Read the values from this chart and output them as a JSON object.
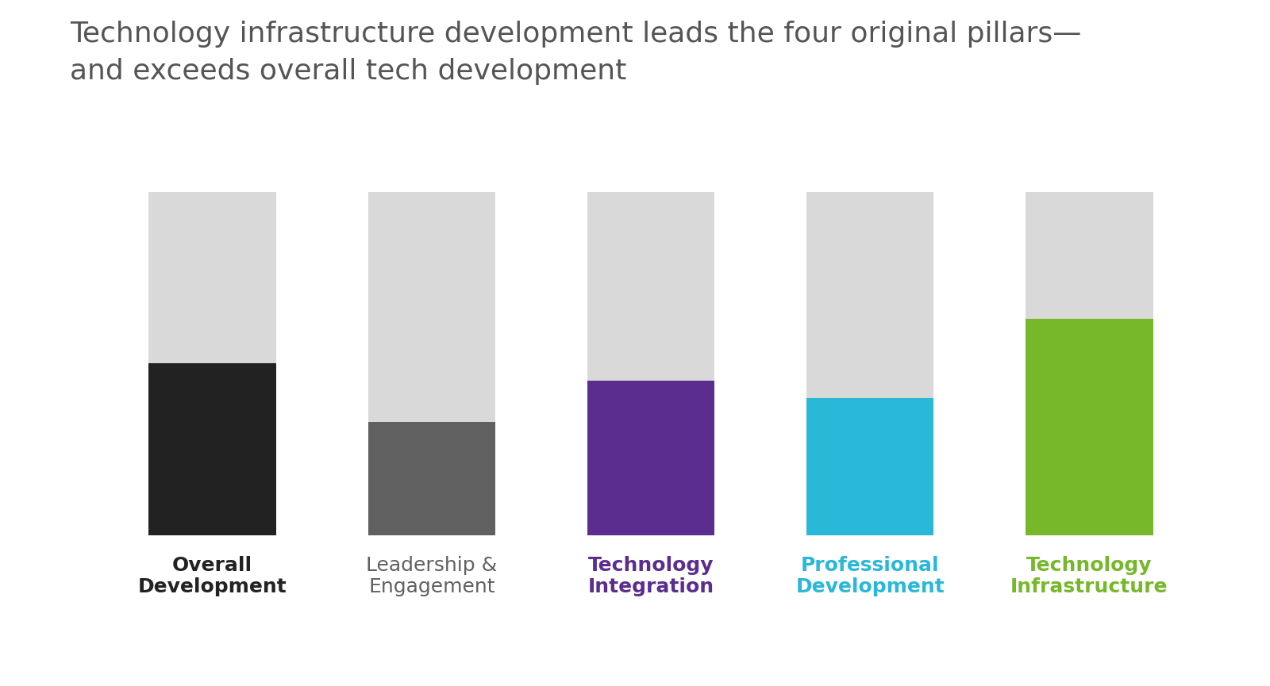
{
  "title_line1": "Technology infrastructure development leads the four original pillars—",
  "title_line2": "and exceeds overall tech development",
  "title_color": "#555555",
  "title_fontsize": 26,
  "background_color": "#ffffff",
  "bar_total": 100,
  "categories": [
    "Overall\nDevelopment",
    "Leadership &\nEngagement",
    "Technology\nIntegration",
    "Professional\nDevelopment",
    "Technology\nInfrastructure"
  ],
  "colored_values": [
    50,
    33,
    45,
    40,
    63
  ],
  "gray_values": [
    50,
    67,
    55,
    60,
    37
  ],
  "bar_colors": [
    "#222222",
    "#606060",
    "#5b2d8e",
    "#29b8d8",
    "#76b82a"
  ],
  "label_colors": [
    "#222222",
    "#606060",
    "#5b2d8e",
    "#29b8d8",
    "#76b82a"
  ],
  "label_fontweights": [
    "bold",
    "normal",
    "bold",
    "bold",
    "bold"
  ],
  "gray_color": "#d9d9d9",
  "bar_width": 0.58,
  "ylim": [
    0,
    100
  ],
  "label_fontsize": 18
}
